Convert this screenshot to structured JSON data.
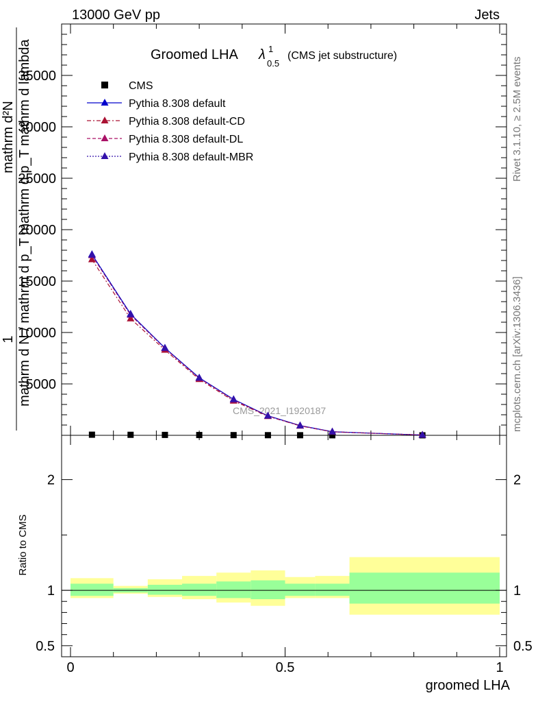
{
  "header": {
    "energy_label": "13000 GeV pp",
    "category_label": "Jets"
  },
  "side_labels": {
    "rivet": "Rivet 3.1.10, ≥ 2.5M events",
    "mcplots": "mcplots.cern.ch [arXiv:1306.3436]"
  },
  "watermark": "CMS_2021_I1920187",
  "title": {
    "main": "Groomed LHA",
    "lambda_super": "1",
    "lambda_sub": "0.5",
    "paren": "(CMS jet substructure)"
  },
  "main_ylabel": {
    "outer_top": "1",
    "outer_bottom": "mathrm d N / mathrm d p_T",
    "inner_top": "mathrm d²N",
    "inner_bottom": "mathrm d p_T mathrm d lambda"
  },
  "ratio_ylabel": "Ratio to CMS",
  "xlabel": "groomed LHA",
  "legend": [
    {
      "name": "CMS",
      "color": "#000000",
      "line": "none",
      "marker": "square"
    },
    {
      "name": "Pythia 8.308 default",
      "color": "#0000cc",
      "line": "solid",
      "marker": "triangle"
    },
    {
      "name": "Pythia 8.308 default-CD",
      "color": "#aa1133",
      "line": "dashdot",
      "marker": "triangle"
    },
    {
      "name": "Pythia 8.308 default-DL",
      "color": "#aa1166",
      "line": "dashed",
      "marker": "triangle"
    },
    {
      "name": "Pythia 8.308 default-MBR",
      "color": "#3311aa",
      "line": "dotted",
      "marker": "triangle"
    }
  ],
  "chart_data": {
    "type": "line",
    "xlim": [
      0,
      1
    ],
    "ylim": [
      0,
      40000
    ],
    "ratio_ylim": [
      0.4,
      2.4
    ],
    "x_ticks": [
      "0",
      "0.5",
      "1"
    ],
    "x_tick_values": [
      0,
      0.5,
      1
    ],
    "y_ticks": [
      "5000",
      "10000",
      "15000",
      "20000",
      "25000",
      "30000",
      "35000"
    ],
    "y_tick_values": [
      5000,
      10000,
      15000,
      20000,
      25000,
      30000,
      35000
    ],
    "ratio_y_ticks": [
      "0.5",
      "1",
      "2"
    ],
    "ratio_y_tick_values": [
      0.5,
      1,
      2
    ],
    "x": [
      0.05,
      0.14,
      0.22,
      0.3,
      0.38,
      0.46,
      0.535,
      0.61,
      0.82
    ],
    "bin_edges": [
      0,
      0.1,
      0.18,
      0.26,
      0.34,
      0.42,
      0.5,
      0.57,
      0.65,
      1.0
    ],
    "series": [
      {
        "name": "CMS",
        "values": [
          60,
          50,
          40,
          30,
          20,
          15,
          10,
          5,
          2
        ]
      },
      {
        "name": "Pythia 8.308 default",
        "values": [
          17600,
          11800,
          8500,
          5600,
          3500,
          1900,
          950,
          350,
          30
        ]
      },
      {
        "name": "Pythia 8.308 default-CD",
        "values": [
          17100,
          11350,
          8300,
          5450,
          3350,
          1850,
          920,
          330,
          28
        ]
      },
      {
        "name": "Pythia 8.308 default-DL",
        "values": [
          17500,
          11700,
          8450,
          5550,
          3450,
          1880,
          940,
          345,
          30
        ]
      },
      {
        "name": "Pythia 8.308 default-MBR",
        "values": [
          17550,
          11750,
          8480,
          5580,
          3480,
          1890,
          945,
          348,
          30
        ]
      }
    ],
    "ratio_band_inner": [
      [
        0.95,
        1.06
      ],
      [
        0.98,
        1.02
      ],
      [
        0.96,
        1.05
      ],
      [
        0.95,
        1.06
      ],
      [
        0.93,
        1.08
      ],
      [
        0.92,
        1.09
      ],
      [
        0.95,
        1.06
      ],
      [
        0.95,
        1.06
      ],
      [
        0.88,
        1.16
      ]
    ],
    "ratio_band_outer": [
      [
        0.93,
        1.11
      ],
      [
        0.97,
        1.04
      ],
      [
        0.94,
        1.1
      ],
      [
        0.92,
        1.13
      ],
      [
        0.89,
        1.16
      ],
      [
        0.86,
        1.18
      ],
      [
        0.93,
        1.12
      ],
      [
        0.93,
        1.13
      ],
      [
        0.78,
        1.3
      ]
    ],
    "colors": {
      "band_inner": "#99ff99",
      "band_outer": "#ffff99"
    },
    "legend_position": "top-left",
    "grid": false
  }
}
